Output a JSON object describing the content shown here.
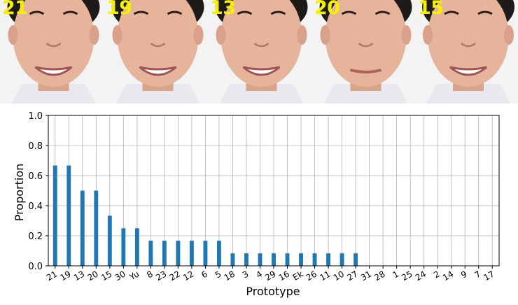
{
  "faces": [
    {
      "label": "21",
      "mouth": "smile"
    },
    {
      "label": "19",
      "mouth": "smile"
    },
    {
      "label": "13",
      "mouth": "smile"
    },
    {
      "label": "20",
      "mouth": "closed"
    },
    {
      "label": "15",
      "mouth": "smile"
    }
  ],
  "colors": {
    "bar": "#1f77b4",
    "grid": "#b0b0b0",
    "face_label": "#f5f000"
  },
  "chart_data": {
    "type": "bar",
    "xlabel": "Prototype",
    "ylabel": "Proportion",
    "ylim": [
      0,
      1.0
    ],
    "yticks": [
      "0.0",
      "0.2",
      "0.4",
      "0.6",
      "0.8",
      "1.0"
    ],
    "grid": true,
    "categories": [
      "21",
      "19",
      "13",
      "20",
      "15",
      "30",
      "Yu",
      "8",
      "23",
      "22",
      "12",
      "6",
      "5",
      "18",
      "3",
      "4",
      "29",
      "16",
      "Ek",
      "26",
      "11",
      "10",
      "27",
      "31",
      "28",
      "1",
      "25",
      "24",
      "2",
      "14",
      "9",
      "7",
      "17"
    ],
    "values": [
      0.667,
      0.667,
      0.5,
      0.5,
      0.333,
      0.25,
      0.25,
      0.167,
      0.167,
      0.167,
      0.167,
      0.167,
      0.167,
      0.083,
      0.083,
      0.083,
      0.083,
      0.083,
      0.083,
      0.083,
      0.083,
      0.083,
      0.083,
      0,
      0,
      0,
      0,
      0,
      0,
      0,
      0,
      0,
      0
    ]
  }
}
